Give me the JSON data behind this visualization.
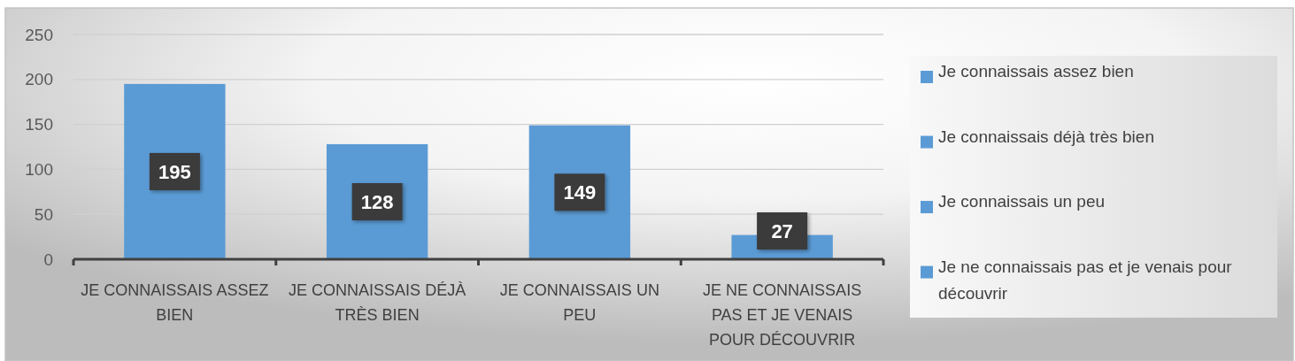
{
  "chart_data": {
    "type": "bar",
    "categories": [
      "JE CONNAISSAIS ASSEZ BIEN",
      "JE CONNAISSAIS DÉJÀ TRÈS BIEN",
      "JE CONNAISSAIS UN PEU",
      "JE NE CONNAISSAIS PAS ET JE VENAIS POUR DÉCOUVRIR"
    ],
    "series": [
      {
        "name": "Je connaissais assez bien",
        "color": "#5b9bd5",
        "values": [
          195,
          null,
          null,
          null
        ]
      },
      {
        "name": "Je connaissais déjà très bien",
        "color": "#5b9bd5",
        "values": [
          null,
          128,
          null,
          null
        ]
      },
      {
        "name": "Je connaissais un peu",
        "color": "#5b9bd5",
        "values": [
          null,
          null,
          149,
          null
        ]
      },
      {
        "name": "Je ne connaissais pas et je venais pour découvrir",
        "color": "#5b9bd5",
        "values": [
          null,
          null,
          null,
          27
        ]
      }
    ],
    "stacked": true,
    "ylim": [
      0,
      250
    ],
    "yticks": [
      0,
      50,
      100,
      150,
      200,
      250
    ],
    "grid": "y",
    "legend": "right",
    "data_labels": true
  }
}
